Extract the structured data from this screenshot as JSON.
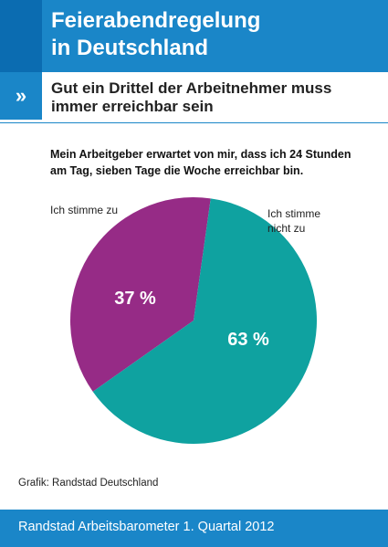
{
  "header": {
    "title_line1": "Feierabendregelung",
    "title_line2": "in Deutschland"
  },
  "subheader": {
    "marker": "»",
    "title_line1": "Gut ein Drittel der Arbeitnehmer muss",
    "title_line2": "immer erreichbar sein"
  },
  "question": {
    "line1": "Mein Arbeitgeber erwartet von mir, dass ich 24 Stunden",
    "line2": "am Tag, sieben Tage die Woche erreichbar bin."
  },
  "credit": "Grafik: Randstad Deutschland",
  "footer": "Randstad Arbeitsbarometer 1. Quartal 2012",
  "colors": {
    "header_blue": "#1a86c8",
    "header_dark": "#0b6cb1",
    "slice_agree": "#962b86",
    "slice_disagree": "#0fa2a0"
  },
  "chart_data": {
    "type": "pie",
    "slices": [
      {
        "label": "Ich stimme zu",
        "value": 37,
        "value_label": "37 %",
        "color": "#962b86"
      },
      {
        "label": "Ich stimme nicht zu",
        "label_lines": [
          "Ich stimme",
          "nicht zu"
        ],
        "value": 63,
        "value_label": "63 %",
        "color": "#0fa2a0"
      }
    ]
  }
}
